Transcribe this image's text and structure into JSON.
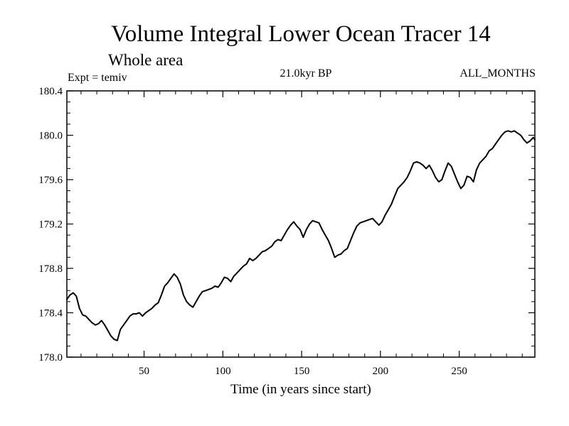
{
  "chart_data": {
    "type": "line",
    "title": "Volume Integral Lower Ocean Tracer 14",
    "subtitle": "Whole area",
    "left_label": "Expt = temiv",
    "center_label": "21.0kyr BP",
    "right_label": "ALL_MONTHS",
    "xlabel": "Time (in years since start)",
    "ylabel": "",
    "xlim": [
      1,
      298
    ],
    "ylim": [
      178.0,
      180.4
    ],
    "x_ticks": [
      50,
      100,
      150,
      200,
      250
    ],
    "x_tick_labels": [
      "50",
      "100",
      "150",
      "200",
      "250"
    ],
    "y_ticks": [
      178.0,
      178.4,
      178.8,
      179.2,
      179.6,
      180.0,
      180.4
    ],
    "y_tick_labels": [
      "178.0",
      "178.4",
      "178.8",
      "179.2",
      "179.6",
      "180.0",
      "180.4"
    ],
    "grid": false,
    "line_color": "#000000",
    "series": [
      {
        "name": "Volume Integral Lower Ocean Tracer 14",
        "x": [
          1,
          3,
          5,
          7,
          9,
          11,
          13,
          15,
          17,
          19,
          21,
          23,
          25,
          27,
          29,
          31,
          33,
          35,
          37,
          39,
          41,
          43,
          45,
          47,
          49,
          51,
          53,
          55,
          57,
          59,
          61,
          63,
          65,
          67,
          69,
          71,
          73,
          75,
          77,
          79,
          81,
          83,
          85,
          87,
          89,
          91,
          93,
          95,
          97,
          99,
          101,
          103,
          105,
          107,
          109,
          111,
          113,
          115,
          117,
          119,
          121,
          123,
          125,
          127,
          129,
          131,
          133,
          135,
          137,
          139,
          141,
          143,
          145,
          147,
          149,
          151,
          153,
          155,
          157,
          159,
          161,
          163,
          165,
          167,
          169,
          171,
          173,
          175,
          177,
          179,
          181,
          183,
          185,
          187,
          189,
          191,
          193,
          195,
          197,
          199,
          201,
          203,
          205,
          207,
          209,
          211,
          213,
          215,
          217,
          219,
          221,
          223,
          225,
          227,
          229,
          231,
          233,
          235,
          237,
          239,
          241,
          243,
          245,
          247,
          249,
          251,
          253,
          255,
          257,
          259,
          261,
          263,
          265,
          267,
          269,
          271,
          273,
          275,
          277,
          279,
          281,
          283,
          285,
          287,
          289,
          291,
          293,
          295,
          297,
          298
        ],
        "values": [
          178.52,
          178.56,
          178.58,
          178.55,
          178.44,
          178.38,
          178.37,
          178.34,
          178.31,
          178.29,
          178.3,
          178.33,
          178.29,
          178.24,
          178.19,
          178.16,
          178.15,
          178.25,
          178.29,
          178.33,
          178.37,
          178.39,
          178.39,
          178.4,
          178.37,
          178.4,
          178.42,
          178.44,
          178.47,
          178.49,
          178.56,
          178.64,
          178.67,
          178.71,
          178.75,
          178.72,
          178.66,
          178.56,
          178.5,
          178.47,
          178.45,
          178.5,
          178.55,
          178.59,
          178.6,
          178.61,
          178.62,
          178.64,
          178.63,
          178.67,
          178.72,
          178.71,
          178.68,
          178.73,
          178.76,
          178.79,
          178.82,
          178.84,
          178.89,
          178.87,
          178.89,
          178.92,
          178.95,
          178.96,
          178.98,
          179.0,
          179.04,
          179.06,
          179.05,
          179.1,
          179.15,
          179.19,
          179.22,
          179.18,
          179.15,
          179.08,
          179.15,
          179.2,
          179.23,
          179.22,
          179.21,
          179.15,
          179.1,
          179.05,
          178.98,
          178.9,
          178.92,
          178.93,
          178.96,
          178.98,
          179.05,
          179.12,
          179.18,
          179.21,
          179.22,
          179.23,
          179.24,
          179.25,
          179.22,
          179.19,
          179.22,
          179.28,
          179.33,
          179.38,
          179.45,
          179.52,
          179.55,
          179.58,
          179.62,
          179.68,
          179.75,
          179.76,
          179.75,
          179.73,
          179.7,
          179.73,
          179.68,
          179.62,
          179.58,
          179.6,
          179.68,
          179.75,
          179.72,
          179.65,
          179.58,
          179.52,
          179.55,
          179.63,
          179.62,
          179.58,
          179.69,
          179.75,
          179.78,
          179.81,
          179.86,
          179.88,
          179.92,
          179.96,
          180.0,
          180.03,
          180.04,
          180.03,
          180.04,
          180.02,
          180.0,
          179.96,
          179.93,
          179.95,
          179.98,
          179.96
        ]
      }
    ]
  }
}
